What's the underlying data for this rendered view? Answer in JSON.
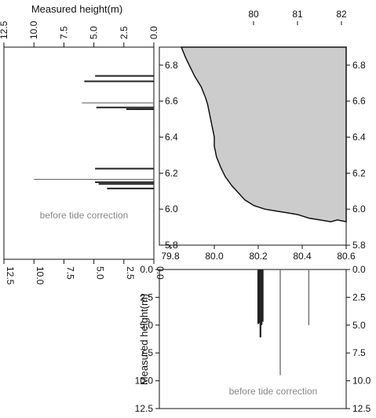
{
  "chart_data": [
    {
      "type": "bar",
      "orientation": "horizontal",
      "panel": "left",
      "axis_title": "Measured height(m)",
      "annotation": "before tide correction",
      "x_reversed": true,
      "xlim": [
        0,
        12.5
      ],
      "x_ticks": [
        12.5,
        10.0,
        7.5,
        5.0,
        2.5,
        0.0
      ],
      "x_tick_labels": [
        "12.5",
        "10.0",
        "7.5",
        "5.0",
        "2.5",
        "0.0"
      ],
      "ylim": [
        5.8,
        6.9
      ],
      "values": [
        {
          "lat": 6.74,
          "h": 4.9
        },
        {
          "lat": 6.71,
          "h": 5.8
        },
        {
          "lat": 6.59,
          "h": 6.0
        },
        {
          "lat": 6.565,
          "h": 4.8
        },
        {
          "lat": 6.555,
          "h": 2.3
        },
        {
          "lat": 6.225,
          "h": 4.9
        },
        {
          "lat": 6.165,
          "h": 10.0
        },
        {
          "lat": 6.15,
          "h": 4.9
        },
        {
          "lat": 6.14,
          "h": 4.6
        },
        {
          "lat": 6.115,
          "h": 3.9
        }
      ]
    },
    {
      "type": "area",
      "panel": "map",
      "xlim": [
        79.75,
        80.6
      ],
      "ylim": [
        5.8,
        6.9
      ],
      "x_ticks": [
        79.8,
        80.0,
        80.2,
        80.4,
        80.6
      ],
      "x_tick_labels": [
        "79.8",
        "80.0",
        "80.2",
        "80.4",
        "80.6"
      ],
      "y_ticks": [
        5.8,
        6.0,
        6.2,
        6.4,
        6.6,
        6.8
      ],
      "y_tick_labels": [
        "5.8",
        "6.0",
        "6.2",
        "6.4",
        "6.6",
        "6.8"
      ],
      "top_ticks": [
        80,
        81,
        82
      ],
      "top_tick_labels": [
        "80",
        "81",
        "82"
      ],
      "land_color": "#cccccc",
      "coastline": [
        [
          79.85,
          6.9
        ],
        [
          79.87,
          6.84
        ],
        [
          79.89,
          6.79
        ],
        [
          79.91,
          6.74
        ],
        [
          79.94,
          6.68
        ],
        [
          79.96,
          6.62
        ],
        [
          79.97,
          6.58
        ],
        [
          79.98,
          6.52
        ],
        [
          79.99,
          6.46
        ],
        [
          80.0,
          6.4
        ],
        [
          80.0,
          6.35
        ],
        [
          80.01,
          6.29
        ],
        [
          80.03,
          6.23
        ],
        [
          80.05,
          6.18
        ],
        [
          80.08,
          6.13
        ],
        [
          80.11,
          6.09
        ],
        [
          80.14,
          6.05
        ],
        [
          80.18,
          6.02
        ],
        [
          80.23,
          6.0
        ],
        [
          80.28,
          5.99
        ],
        [
          80.33,
          5.98
        ],
        [
          80.38,
          5.97
        ],
        [
          80.43,
          5.95
        ],
        [
          80.48,
          5.94
        ],
        [
          80.53,
          5.93
        ],
        [
          80.56,
          5.94
        ],
        [
          80.6,
          5.93
        ]
      ]
    },
    {
      "type": "bar",
      "orientation": "vertical",
      "panel": "bottom",
      "ylabel": "Measured height(m)",
      "annotation": "before tide correction",
      "y_reversed": true,
      "ylim": [
        0,
        12.5
      ],
      "y_ticks": [
        0.0,
        2.5,
        5.0,
        7.5,
        10.0,
        12.5
      ],
      "y_tick_labels": [
        "0.0",
        "2.5",
        "5.0",
        "7.5",
        "10.0",
        "12.5"
      ],
      "values": [
        {
          "lon": 80.2,
          "h": 4.9
        },
        {
          "lon": 80.205,
          "h": 4.8
        },
        {
          "lon": 80.21,
          "h": 6.1
        },
        {
          "lon": 80.215,
          "h": 5.0
        },
        {
          "lon": 80.22,
          "h": 4.7
        },
        {
          "lon": 80.3,
          "h": 9.5
        },
        {
          "lon": 80.43,
          "h": 5.0
        }
      ]
    }
  ]
}
